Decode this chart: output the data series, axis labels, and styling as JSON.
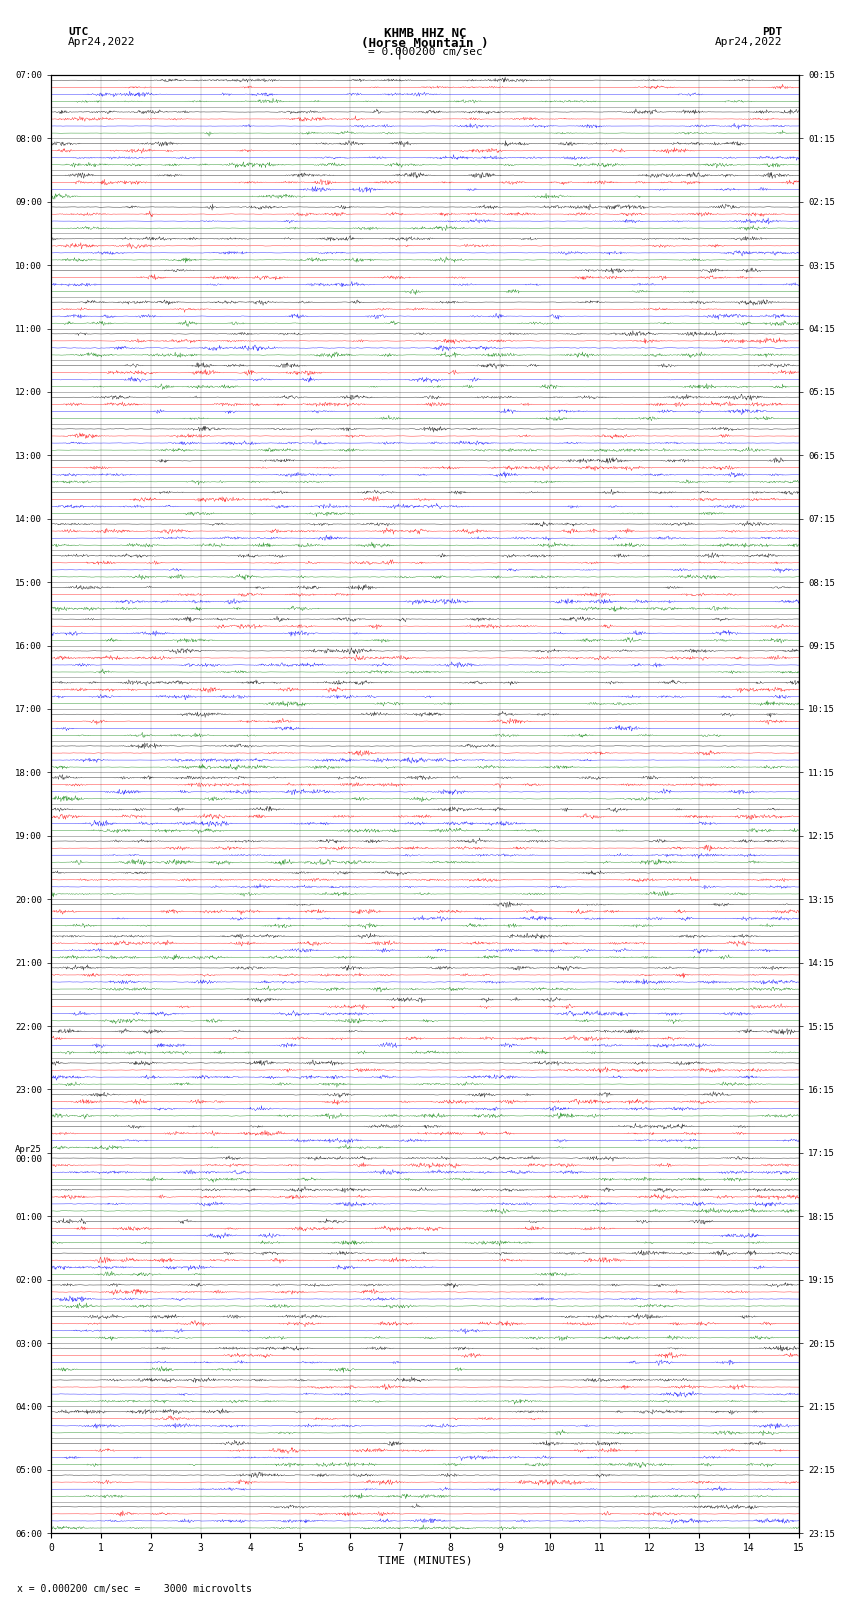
{
  "title_line1": "KHMB HHZ NC",
  "title_line2": "(Horse Mountain )",
  "scale_text": "= 0.000200 cm/sec",
  "left_header": "UTC",
  "left_date": "Apr24,2022",
  "right_header": "PDT",
  "right_date": "Apr24,2022",
  "bottom_label": "TIME (MINUTES)",
  "bottom_note": "= 0.000200 cm/sec =    3000 microvolts",
  "bottom_note_prefix": "x",
  "utc_labels": [
    "07:00",
    "",
    "08:00",
    "",
    "09:00",
    "",
    "10:00",
    "",
    "11:00",
    "",
    "12:00",
    "",
    "13:00",
    "",
    "14:00",
    "",
    "15:00",
    "",
    "16:00",
    "",
    "17:00",
    "",
    "18:00",
    "",
    "19:00",
    "",
    "20:00",
    "",
    "21:00",
    "",
    "22:00",
    "",
    "23:00",
    "",
    "Apr25\n00:00",
    "",
    "01:00",
    "",
    "02:00",
    "",
    "03:00",
    "",
    "04:00",
    "",
    "05:00",
    "",
    "06:00"
  ],
  "pdt_labels": [
    "00:15",
    "",
    "01:15",
    "",
    "02:15",
    "",
    "03:15",
    "",
    "04:15",
    "",
    "05:15",
    "",
    "06:15",
    "",
    "07:15",
    "",
    "08:15",
    "",
    "09:15",
    "",
    "10:15",
    "",
    "11:15",
    "",
    "12:15",
    "",
    "13:15",
    "",
    "14:15",
    "",
    "15:15",
    "",
    "16:15",
    "",
    "17:15",
    "",
    "18:15",
    "",
    "19:15",
    "",
    "20:15",
    "",
    "21:15",
    "",
    "22:15",
    "",
    "23:15"
  ],
  "colors": [
    "black",
    "red",
    "blue",
    "green"
  ],
  "bg_color": "white",
  "num_rows": 46,
  "traces_per_row": 4,
  "minutes": 15,
  "samples_per_minute": 100,
  "fig_width": 8.5,
  "fig_height": 16.13,
  "dpi": 100
}
